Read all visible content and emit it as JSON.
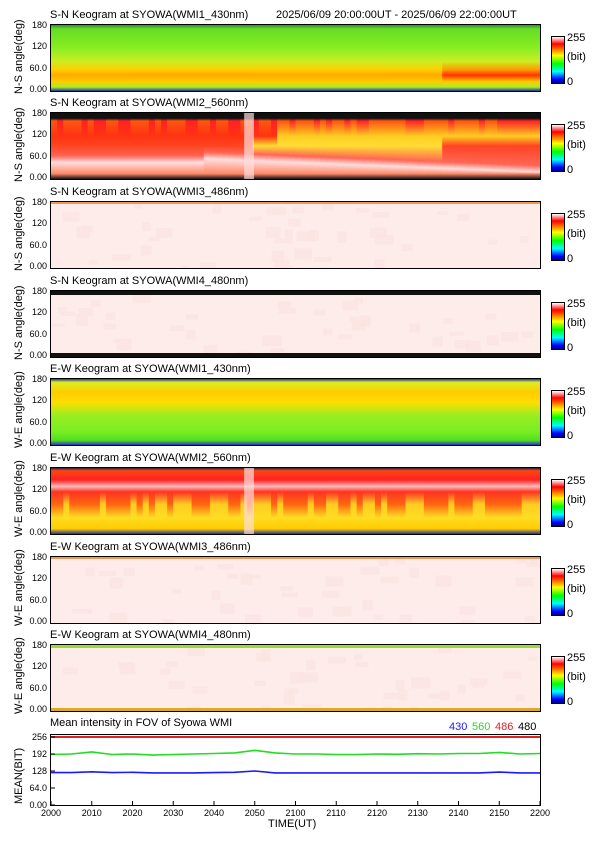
{
  "header": {
    "title_main": "S-N Keogram at SYOWA(WMI1_430nm)",
    "time_range": "2025/06/09 20:00:00UT - 2025/06/09 22:00:00UT"
  },
  "colorbar": {
    "max": "255",
    "unit": "(bit)",
    "min": "0"
  },
  "panels": [
    {
      "title": "S-N Keogram at SYOWA(WMI1_430nm)",
      "ylabel": "N-S angle(deg)",
      "yticks": [
        "180",
        "120",
        "60.0",
        "0.00"
      ],
      "style": "green"
    },
    {
      "title": "S-N Keogram at SYOWA(WMI2_560nm)",
      "ylabel": "N-S angle(deg)",
      "yticks": [
        "180",
        "120",
        "60.0",
        "0.00"
      ],
      "style": "red"
    },
    {
      "title": "S-N Keogram at SYOWA(WMI3_486nm)",
      "ylabel": "N-S angle(deg)",
      "yticks": [
        "180",
        "120",
        "60.0",
        "0.00"
      ],
      "style": "blank"
    },
    {
      "title": "S-N Keogram at SYOWA(WMI4_480nm)",
      "ylabel": "N-S angle(deg)",
      "yticks": [
        "180",
        "120",
        "60.0",
        "0.00"
      ],
      "style": "blank-dark"
    },
    {
      "title": "E-W Keogram at SYOWA(WMI1_430nm)",
      "ylabel": "W-E angle(deg)",
      "yticks": [
        "180",
        "120",
        "60.0",
        "0.00"
      ],
      "style": "green-ew"
    },
    {
      "title": "E-W Keogram at SYOWA(WMI2_560nm)",
      "ylabel": "W-E angle(deg)",
      "yticks": [
        "180",
        "120",
        "60.0",
        "0.00"
      ],
      "style": "red-ew"
    },
    {
      "title": "E-W Keogram at SYOWA(WMI3_486nm)",
      "ylabel": "W-E angle(deg)",
      "yticks": [
        "180",
        "120",
        "60.0",
        "0.00"
      ],
      "style": "blank"
    },
    {
      "title": "E-W Keogram at SYOWA(WMI4_480nm)",
      "ylabel": "W-E angle(deg)",
      "yticks": [
        "180",
        "120",
        "60.0",
        "0.00"
      ],
      "style": "blank-green"
    }
  ],
  "mean_panel": {
    "title": "Mean intensity in FOV of Syowa WMI",
    "ylabel": "MEAN(BIT)",
    "yticks": [
      "256",
      "192",
      "128",
      "64.0",
      "0.00"
    ],
    "legend": [
      {
        "name": "430",
        "color": "#1a1aff"
      },
      {
        "name": "560",
        "color": "#22dd22"
      },
      {
        "name": "486",
        "color": "#dd2222"
      },
      {
        "name": "480",
        "color": "#000000"
      }
    ]
  },
  "xaxis": {
    "label": "TIME(UT)",
    "ticks": [
      "2000",
      "2010",
      "2020",
      "2030",
      "2040",
      "2050",
      "2100",
      "2110",
      "2120",
      "2130",
      "2140",
      "2150",
      "2200"
    ]
  },
  "chart_data": {
    "type": "line",
    "title": "Mean intensity in FOV of Syowa WMI",
    "xlabel": "TIME(UT)",
    "ylabel": "MEAN(BIT)",
    "xlim": [
      0,
      120
    ],
    "ylim": [
      0,
      256
    ],
    "x": [
      0,
      5,
      10,
      15,
      20,
      25,
      30,
      35,
      40,
      45,
      50,
      55,
      60,
      65,
      70,
      75,
      80,
      85,
      90,
      95,
      100,
      105,
      110,
      115,
      120
    ],
    "series": [
      {
        "name": "430",
        "color": "#1a1aff",
        "values": [
          122,
          122,
          125,
          122,
          123,
          121,
          121,
          121,
          122,
          123,
          128,
          121,
          121,
          121,
          121,
          121,
          121,
          121,
          121,
          121,
          121,
          121,
          124,
          121,
          121
        ]
      },
      {
        "name": "560",
        "color": "#22dd22",
        "values": [
          190,
          192,
          200,
          190,
          192,
          188,
          190,
          192,
          194,
          196,
          206,
          196,
          192,
          192,
          190,
          190,
          192,
          191,
          193,
          192,
          194,
          194,
          198,
          192,
          194
        ]
      },
      {
        "name": "486",
        "color": "#dd2222",
        "values": [
          256,
          256,
          256,
          256,
          256,
          256,
          256,
          256,
          256,
          256,
          256,
          256,
          256,
          256,
          256,
          256,
          256,
          256,
          256,
          256,
          256,
          256,
          256,
          256,
          256
        ]
      },
      {
        "name": "480",
        "color": "#000000",
        "values": [
          256,
          256,
          256,
          256,
          256,
          256,
          256,
          256,
          256,
          256,
          256,
          256,
          256,
          256,
          256,
          256,
          256,
          256,
          256,
          256,
          256,
          256,
          256,
          256,
          256
        ]
      }
    ]
  }
}
